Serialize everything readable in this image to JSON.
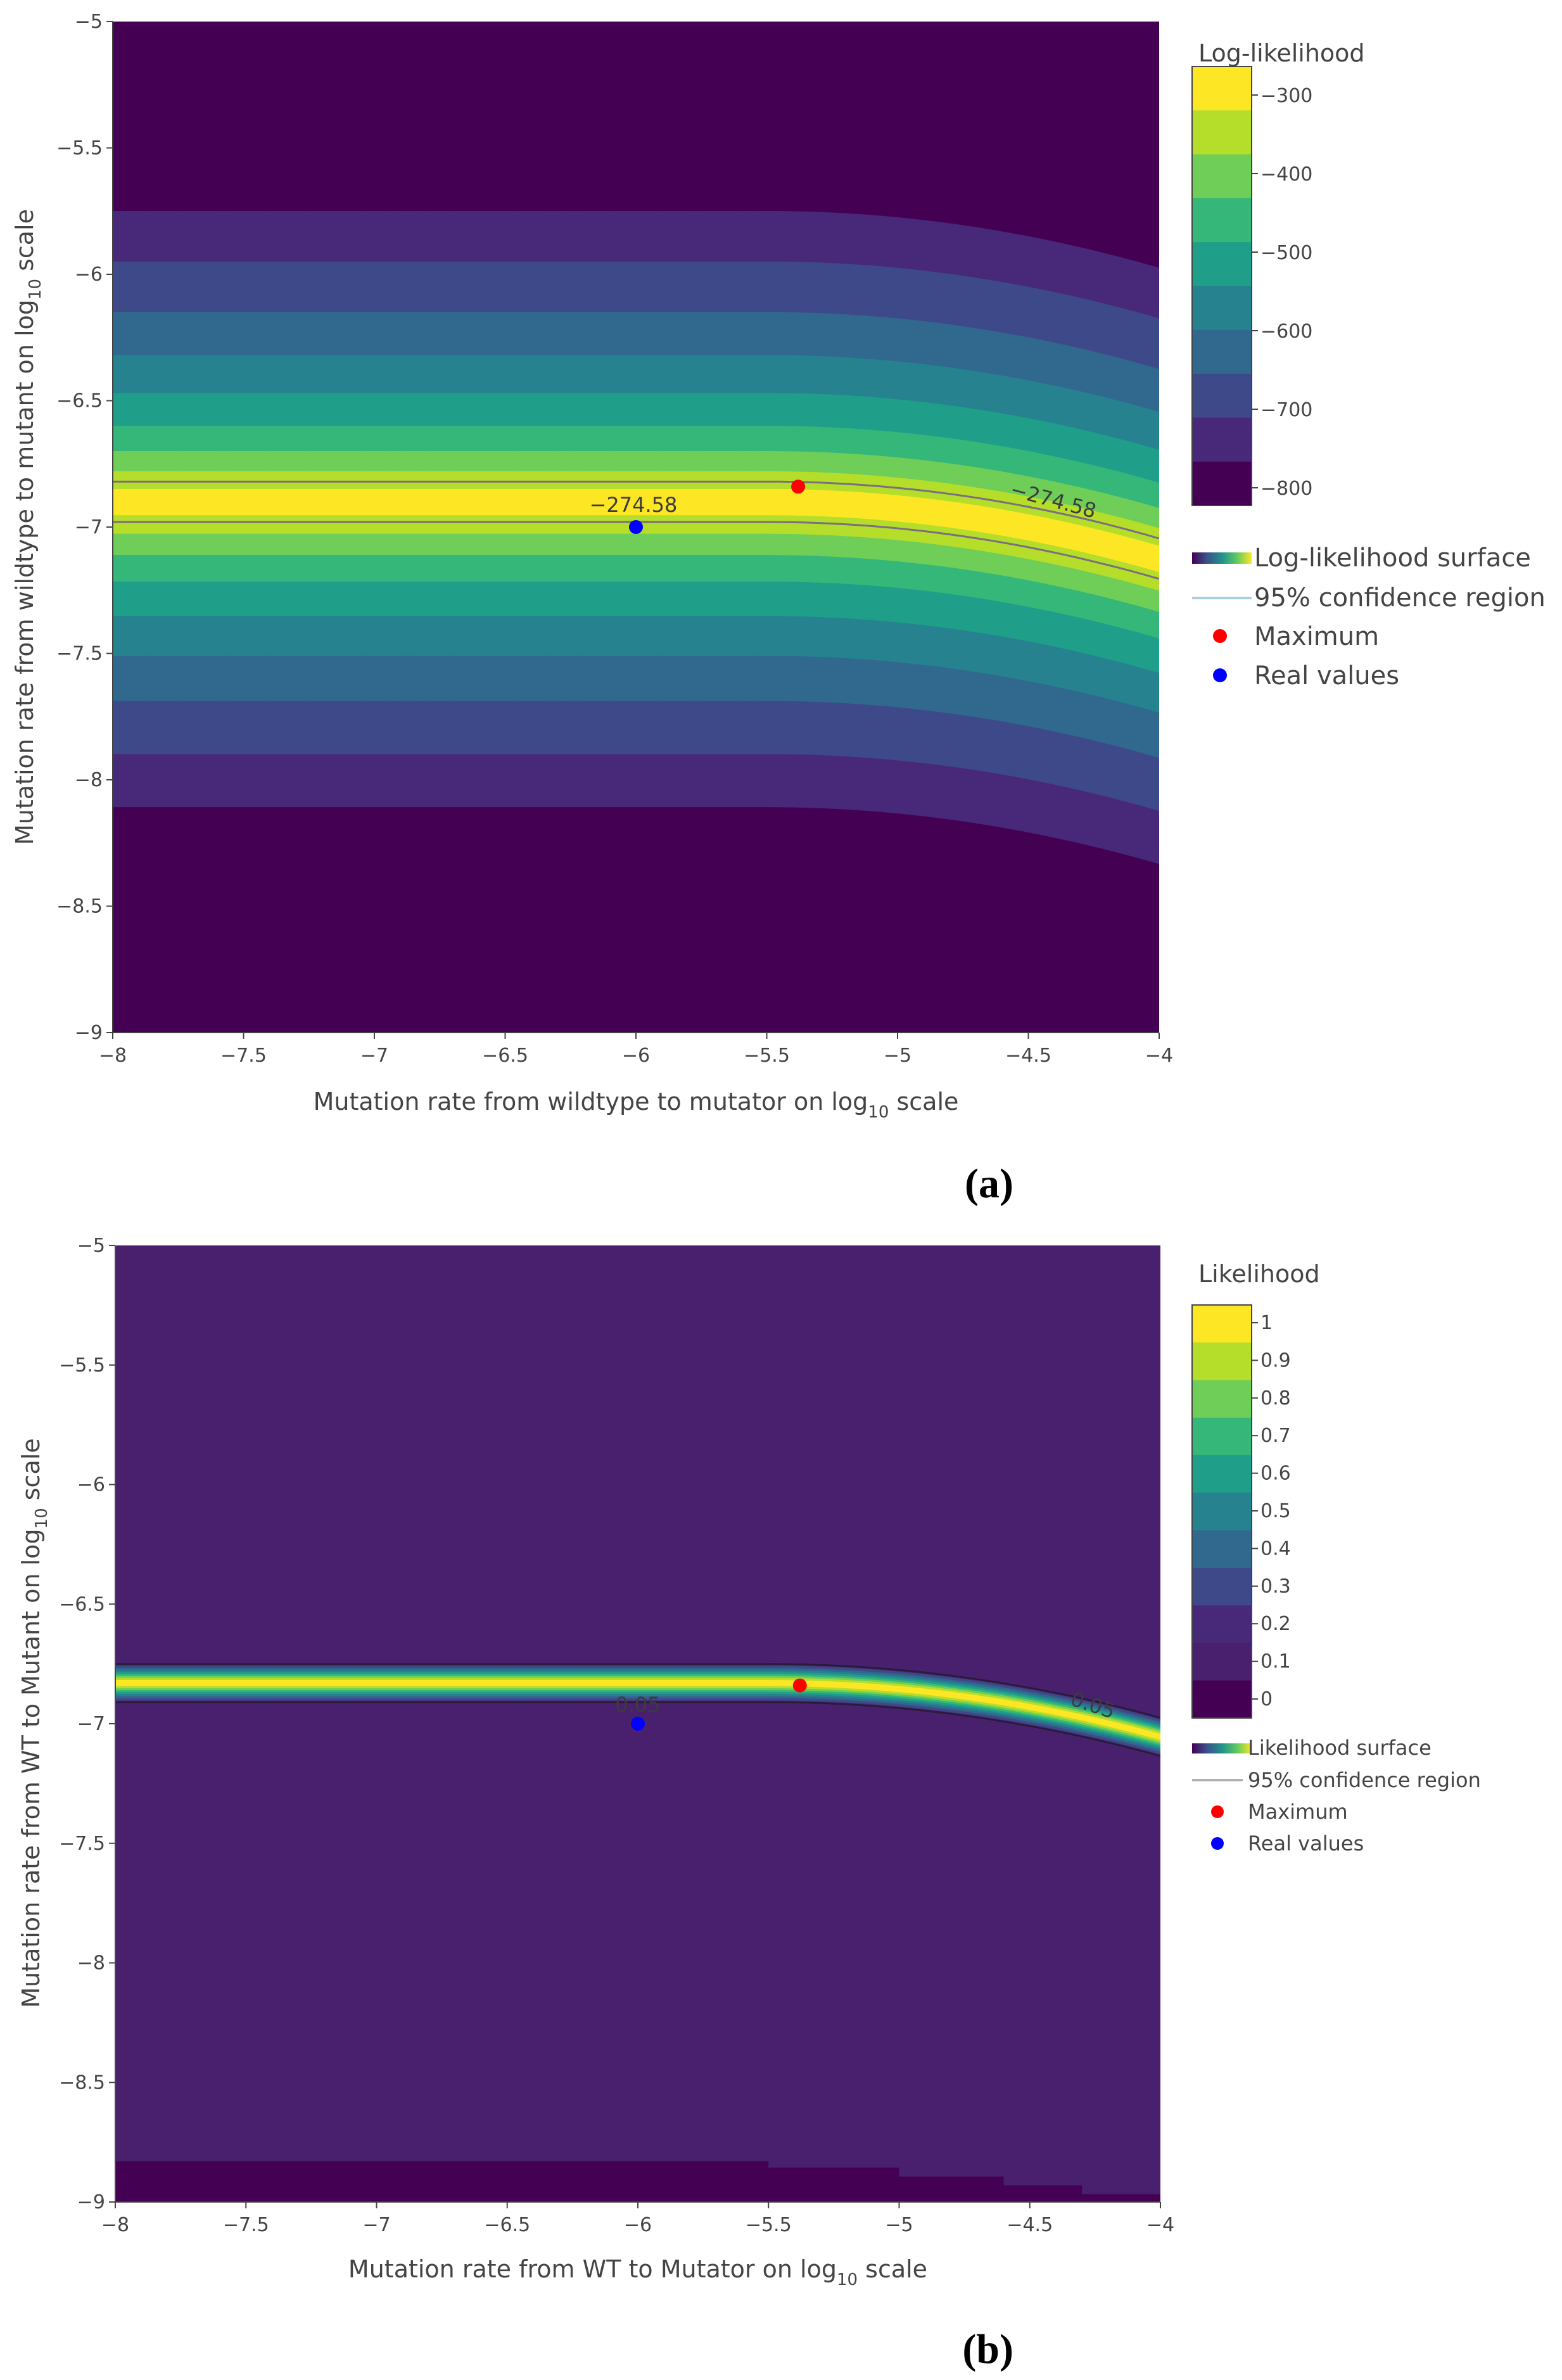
{
  "chart_data": [
    {
      "type": "heatmap",
      "panel_label": "(a)",
      "title": "",
      "xlabel_main": "Mutation rate from wildtype to mutator on log",
      "xlabel_sub": "10",
      "xlabel_tail": " scale",
      "ylabel_main": "Mutation rate from wildtype to mutant on log",
      "ylabel_sub": "10",
      "ylabel_tail": " scale",
      "xlim": [
        -8,
        -4
      ],
      "ylim": [
        -9,
        -5
      ],
      "x_ticks": [
        "−8",
        "−7.5",
        "−7",
        "−6.5",
        "−6",
        "−5.5",
        "−5",
        "−4.5",
        "−4"
      ],
      "y_ticks": [
        "−9",
        "−8.5",
        "−8",
        "−7.5",
        "−7",
        "−6.5",
        "−6",
        "−5.5",
        "−5"
      ],
      "surface": {
        "name": "Log-likelihood surface",
        "optimum_y": -6.9,
        "bend_start_x": -5.5,
        "bend_rate": 0.1,
        "colorscale": [
          "#440154",
          "#482878",
          "#3e4989",
          "#31688e",
          "#26828e",
          "#1f9e89",
          "#35b779",
          "#6ece58",
          "#b5de2b",
          "#fde725"
        ],
        "band_boundaries": [
          0.05,
          0.12,
          0.2,
          0.3,
          0.43,
          0.58,
          0.75,
          0.95,
          1.15,
          1.4,
          1.75,
          2.2
        ]
      },
      "colorbar": {
        "title": "Log-likelihood",
        "ticks": [
          "−300",
          "−400",
          "−500",
          "−600",
          "−700",
          "−800"
        ]
      },
      "contour": {
        "name": "95% confidence region",
        "level_label": "−274.58",
        "half_width": 0.08
      },
      "maximum": {
        "name": "Maximum",
        "x": -5.38,
        "y": -6.84,
        "color": "#ff0000"
      },
      "real_values": {
        "name": "Real values",
        "x": -6.0,
        "y": -7.0,
        "color": "#0000ff"
      }
    },
    {
      "type": "heatmap",
      "panel_label": "(b)",
      "title": "",
      "xlabel_main": "Mutation rate from WT to Mutator on log",
      "xlabel_sub": "10",
      "xlabel_tail": " scale",
      "ylabel_main": "Mutation rate from WT to Mutant on log",
      "ylabel_sub": "10",
      "ylabel_tail": " scale",
      "xlim": [
        -8,
        -4
      ],
      "ylim": [
        -9,
        -5
      ],
      "x_ticks": [
        "−8",
        "−7.5",
        "−7",
        "−6.5",
        "−6",
        "−5.5",
        "−5",
        "−4.5",
        "−4"
      ],
      "y_ticks": [
        "−9",
        "−8.5",
        "−8",
        "−7.5",
        "−7",
        "−6.5",
        "−6",
        "−5.5",
        "−5"
      ],
      "surface": {
        "name": "Likelihood surface",
        "optimum_y": -6.83,
        "bend_start_x": -5.5,
        "bend_rate": 0.1,
        "peak_color": "#fde725",
        "background_color": "#48206e",
        "floor_color": "#440154",
        "floor_y": -8.83
      },
      "colorbar": {
        "title": "Likelihood",
        "ticks": [
          "1",
          "0.9",
          "0.8",
          "0.7",
          "0.6",
          "0.5",
          "0.4",
          "0.3",
          "0.2",
          "0.1",
          "0"
        ]
      },
      "contour": {
        "name": "95% confidence region",
        "level_label": "0.05",
        "half_width": 0.08
      },
      "maximum": {
        "name": "Maximum",
        "x": -5.38,
        "y": -6.84,
        "color": "#ff0000"
      },
      "real_values": {
        "name": "Real values",
        "x": -6.0,
        "y": -7.0,
        "color": "#0000ff"
      }
    }
  ]
}
